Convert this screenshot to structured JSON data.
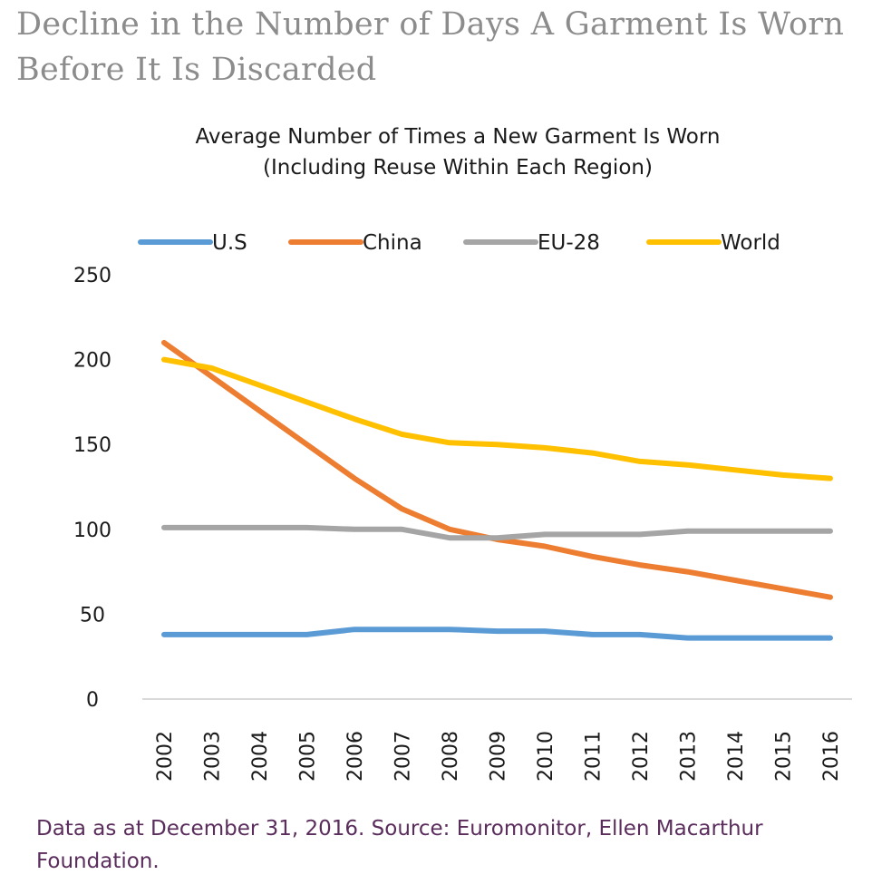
{
  "page": {
    "title_line1": "Decline in the Number of Days A Garment Is Worn",
    "title_line2": "Before It Is Discarded",
    "footnote_line1": "Data as at December 31, 2016. Source: Euromonitor, Ellen Macarthur",
    "footnote_line2": "Foundation."
  },
  "chart_data": {
    "type": "line",
    "title_line1": "Average Number of Times a New Garment Is Worn",
    "title_line2": "(Including Reuse Within Each Region)",
    "xlabel": "",
    "ylabel": "",
    "categories": [
      "2002",
      "2003",
      "2004",
      "2005",
      "2006",
      "2007",
      "2008",
      "2009",
      "2010",
      "2011",
      "2012",
      "2013",
      "2014",
      "2015",
      "2016"
    ],
    "ylim": [
      0,
      250
    ],
    "yticks": [
      0,
      50,
      100,
      150,
      200,
      250
    ],
    "grid": false,
    "legend_position": "top",
    "series": [
      {
        "name": "U.S",
        "color": "#5b9bd5",
        "values": [
          38,
          38,
          38,
          38,
          41,
          41,
          41,
          40,
          40,
          38,
          38,
          36,
          36,
          36,
          36
        ]
      },
      {
        "name": "China",
        "color": "#ed7d31",
        "values": [
          210,
          190,
          170,
          150,
          130,
          112,
          100,
          94,
          90,
          84,
          79,
          75,
          70,
          65,
          60
        ]
      },
      {
        "name": "EU-28",
        "color": "#a5a5a5",
        "values": [
          101,
          101,
          101,
          101,
          100,
          100,
          95,
          95,
          97,
          97,
          97,
          99,
          99,
          99,
          99
        ]
      },
      {
        "name": "World",
        "color": "#ffc000",
        "values": [
          200,
          195,
          185,
          175,
          165,
          156,
          151,
          150,
          148,
          145,
          140,
          138,
          135,
          132,
          130
        ]
      }
    ]
  }
}
